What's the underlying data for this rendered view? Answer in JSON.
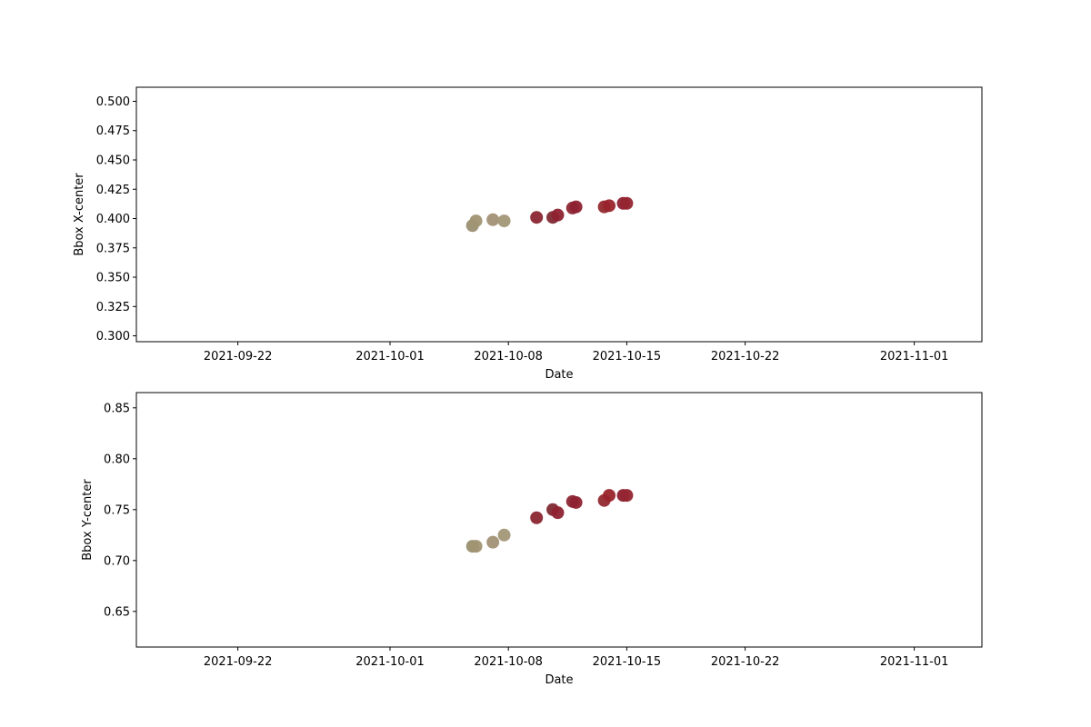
{
  "chart_data": [
    {
      "type": "scatter",
      "title": "",
      "xlabel": "Date",
      "ylabel": "Bbox X-center",
      "xlim": [
        "2021-09-16",
        "2021-11-05"
      ],
      "ylim": [
        0.295,
        0.512
      ],
      "x_ticks": [
        "2021-09-22",
        "2021-10-01",
        "2021-10-08",
        "2021-10-15",
        "2021-10-22",
        "2021-11-01"
      ],
      "y_ticks": [
        "0.300",
        "0.325",
        "0.350",
        "0.375",
        "0.400",
        "0.425",
        "0.450",
        "0.475",
        "0.500"
      ],
      "grid": false,
      "points": [
        {
          "x": "2021-10-05 21:00",
          "y": 0.394,
          "color": "#9a9072"
        },
        {
          "x": "2021-10-06 02:00",
          "y": 0.398,
          "color": "#a09473"
        },
        {
          "x": "2021-10-07 02:00",
          "y": 0.399,
          "color": "#a29175"
        },
        {
          "x": "2021-10-07 18:00",
          "y": 0.398,
          "color": "#a39778"
        },
        {
          "x": "2021-10-09 16:00",
          "y": 0.401,
          "color": "#8b2630"
        },
        {
          "x": "2021-10-10 15:00",
          "y": 0.401,
          "color": "#7f2a33"
        },
        {
          "x": "2021-10-10 22:00",
          "y": 0.403,
          "color": "#8e2230"
        },
        {
          "x": "2021-10-11 19:00",
          "y": 0.409,
          "color": "#8c2733"
        },
        {
          "x": "2021-10-12 00:00",
          "y": 0.41,
          "color": "#8f2232"
        },
        {
          "x": "2021-10-13 16:00",
          "y": 0.41,
          "color": "#922a2f"
        },
        {
          "x": "2021-10-13 23:00",
          "y": 0.411,
          "color": "#9a242c"
        },
        {
          "x": "2021-10-14 19:00",
          "y": 0.413,
          "color": "#8d2030"
        },
        {
          "x": "2021-10-15 00:00",
          "y": 0.413,
          "color": "#932530"
        }
      ]
    },
    {
      "type": "scatter",
      "title": "",
      "xlabel": "Date",
      "ylabel": "Bbox Y-center",
      "xlim": [
        "2021-09-16",
        "2021-11-05"
      ],
      "ylim": [
        0.615,
        0.865
      ],
      "x_ticks": [
        "2021-09-22",
        "2021-10-01",
        "2021-10-08",
        "2021-10-15",
        "2021-10-22",
        "2021-11-01"
      ],
      "y_ticks": [
        "0.65",
        "0.70",
        "0.75",
        "0.80",
        "0.85"
      ],
      "grid": false,
      "points": [
        {
          "x": "2021-10-05 21:00",
          "y": 0.714,
          "color": "#9a9072"
        },
        {
          "x": "2021-10-06 02:00",
          "y": 0.714,
          "color": "#a09473"
        },
        {
          "x": "2021-10-07 02:00",
          "y": 0.718,
          "color": "#a29175"
        },
        {
          "x": "2021-10-07 18:00",
          "y": 0.725,
          "color": "#a39778"
        },
        {
          "x": "2021-10-09 16:00",
          "y": 0.742,
          "color": "#8b2630"
        },
        {
          "x": "2021-10-10 15:00",
          "y": 0.75,
          "color": "#7f2a33"
        },
        {
          "x": "2021-10-10 22:00",
          "y": 0.747,
          "color": "#8e2230"
        },
        {
          "x": "2021-10-11 19:00",
          "y": 0.758,
          "color": "#8c2733"
        },
        {
          "x": "2021-10-12 00:00",
          "y": 0.757,
          "color": "#8f2232"
        },
        {
          "x": "2021-10-13 16:00",
          "y": 0.759,
          "color": "#922a2f"
        },
        {
          "x": "2021-10-13 23:00",
          "y": 0.764,
          "color": "#9a242c"
        },
        {
          "x": "2021-10-14 19:00",
          "y": 0.764,
          "color": "#8d2030"
        },
        {
          "x": "2021-10-15 00:00",
          "y": 0.764,
          "color": "#932530"
        }
      ]
    }
  ]
}
